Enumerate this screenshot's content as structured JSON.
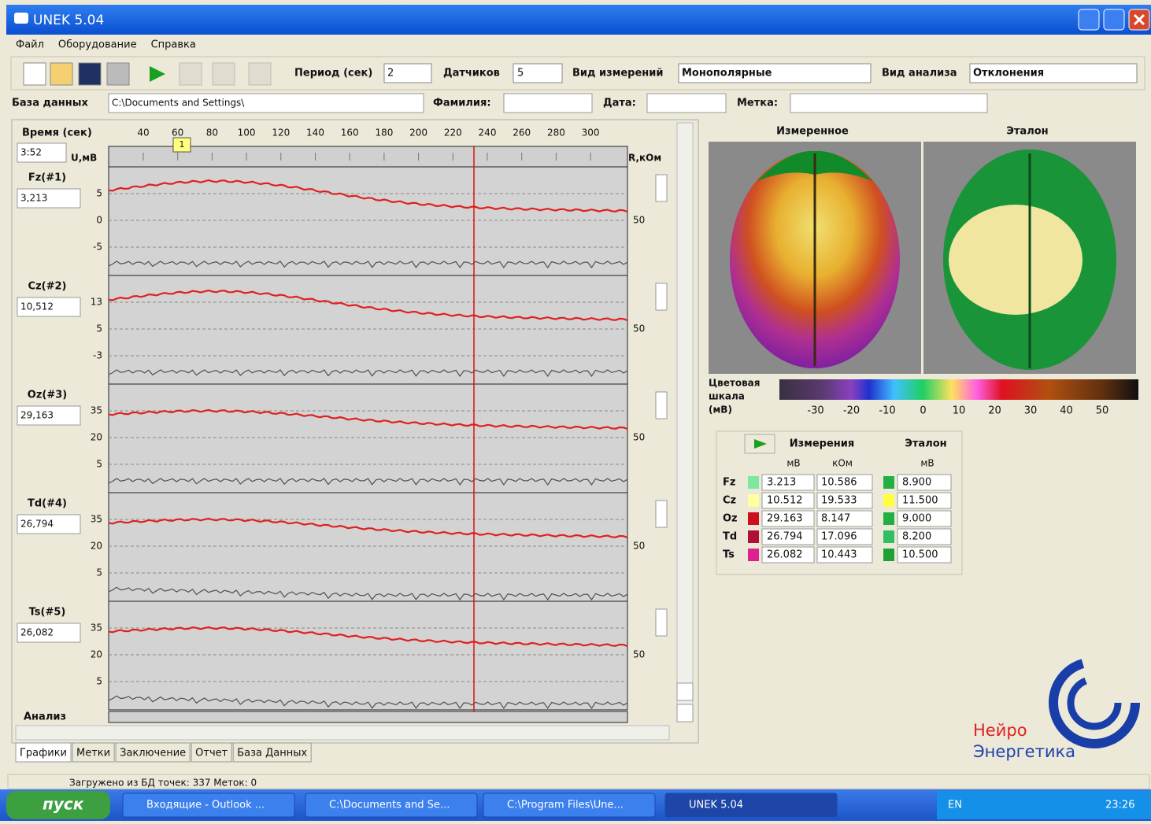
{
  "window": {
    "title": "UNEK 5.04"
  },
  "menu": [
    "Файл",
    "Оборудование",
    "Справка"
  ],
  "toolbar": {
    "period_label": "Период (сек)",
    "period_value": "2",
    "sensors_label": "Датчиков",
    "sensors_value": "5",
    "measure_label": "Вид измерений",
    "measure_value": "Монополярные",
    "analysis_label": "Вид анализа",
    "analysis_value": "Отклонения"
  },
  "fields": {
    "db_label": "База данных",
    "db_value": "C:\\Documents and Settings\\",
    "surname_label": "Фамилия:",
    "date_label": "Дата:",
    "mark_label": "Метка:"
  },
  "graph": {
    "time_label": "Время (сек)",
    "time_value": "3:52",
    "u_label": "U,мВ",
    "r_label": "R,кОм",
    "marker": "1",
    "time_ticks": [
      40,
      60,
      80,
      100,
      120,
      140,
      160,
      180,
      200,
      220,
      240,
      260,
      280,
      300
    ],
    "channels": [
      {
        "name": "Fz(#1)",
        "value": "3,213",
        "yticks": [
          5,
          0,
          -5
        ],
        "r_tick": 50
      },
      {
        "name": "Cz(#2)",
        "value": "10,512",
        "yticks": [
          13,
          5,
          -3
        ],
        "r_tick": 50
      },
      {
        "name": "Oz(#3)",
        "value": "29,163",
        "yticks": [
          35,
          20,
          5
        ],
        "r_tick": 50
      },
      {
        "name": "Td(#4)",
        "value": "26,794",
        "yticks": [
          35,
          20,
          5
        ],
        "r_tick": 50
      },
      {
        "name": "Ts(#5)",
        "value": "26,082",
        "yticks": [
          35,
          20,
          5
        ],
        "r_tick": 50
      }
    ],
    "analysis_label": "Анализ"
  },
  "tabs": [
    "Графики",
    "Метки",
    "Заключение",
    "Отчет",
    "База Данных"
  ],
  "brain": {
    "measured_title": "Измеренное",
    "reference_title": "Эталон",
    "scale_label": [
      "Цветовая",
      "шкала",
      "(мВ)"
    ],
    "scale_ticks": [
      -30,
      -20,
      -10,
      0,
      10,
      20,
      30,
      40,
      50
    ]
  },
  "table": {
    "measured_header": "Измерения",
    "reference_header": "Эталон",
    "units": [
      "мВ",
      "кОм",
      "мВ"
    ],
    "rows": [
      {
        "name": "Fz",
        "color": "#7fe8a0",
        "measured": "3.213",
        "resistance": "10.586",
        "ref_color": "#22b045",
        "reference": "8.900"
      },
      {
        "name": "Cz",
        "color": "#ffffa0",
        "measured": "10.512",
        "resistance": "19.533",
        "ref_color": "#ffff40",
        "reference": "11.500"
      },
      {
        "name": "Oz",
        "color": "#cc1020",
        "measured": "29.163",
        "resistance": "8.147",
        "ref_color": "#22b045",
        "reference": "9.000"
      },
      {
        "name": "Td",
        "color": "#b01035",
        "measured": "26.794",
        "resistance": "17.096",
        "ref_color": "#30c060",
        "reference": "8.200"
      },
      {
        "name": "Ts",
        "color": "#e0208f",
        "measured": "26.082",
        "resistance": "10.443",
        "ref_color": "#20a035",
        "reference": "10.500"
      }
    ]
  },
  "logo": {
    "line1": "Нейро",
    "line2": "Энергетика"
  },
  "status": "Загружено из БД точек: 337 Меток: 0",
  "taskbar": {
    "start": "пуск",
    "tasks": [
      "Входящие - Outlook ...",
      "C:\\Documents and Se...",
      "C:\\Program Files\\Une...",
      "UNEK 5.04"
    ],
    "lang": "EN",
    "clock": "23:26"
  }
}
